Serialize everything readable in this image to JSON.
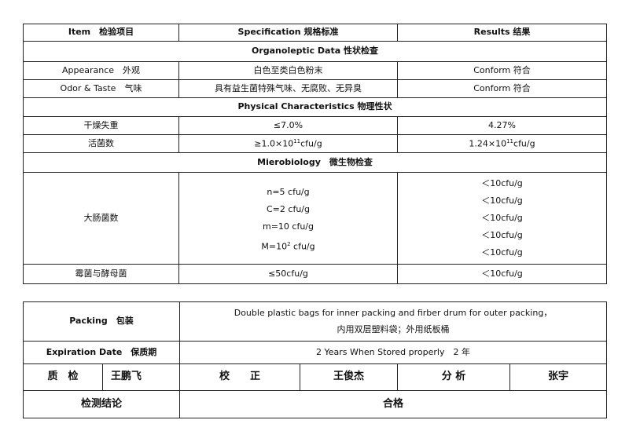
{
  "header": {
    "item": "Item　检验项目",
    "specification": "Specification 规格标准",
    "results": "Results 结果"
  },
  "sections": {
    "organoleptic": "Organoleptic Data 性状检查",
    "physical": "Physical Characteristics 物理性状",
    "microbiology": "Mierobiology　微生物检查"
  },
  "rows": {
    "appearance": {
      "item": "Appearance　外观",
      "spec": "白色至类白色粉末",
      "result": "Conform 符合"
    },
    "odor": {
      "item": "Odor & Taste　气味",
      "spec": "具有益生菌特殊气味、无腐败、无异臭",
      "result": "Conform 符合"
    },
    "drying_loss": {
      "item": "干燥失重",
      "spec": "≤7.0%",
      "result": "4.27%"
    },
    "viable_count": {
      "item": "活菌数",
      "spec_prefix": "≥1.0×10",
      "spec_exp": "11",
      "spec_suffix": "cfu/g",
      "result_prefix": "1.24×10",
      "result_exp": "11",
      "result_suffix": "cfu/g"
    },
    "coliform": {
      "item": "大肠菌数",
      "spec": [
        "n=5 cfu/g",
        "C=2 cfu/g",
        "m=10 cfu/g"
      ],
      "spec_last_prefix": "M=10",
      "spec_last_exp": "2",
      "spec_last_suffix": " cfu/g",
      "results": [
        "＜10cfu/g",
        "＜10cfu/g",
        "＜10cfu/g",
        "＜10cfu/g",
        "＜10cfu/g"
      ]
    },
    "mold_yeast": {
      "item": "霉菌与酵母菌",
      "spec": "≤50cfu/g",
      "result": "＜10cfu/g"
    }
  },
  "footer": {
    "packing_label": "Packing　包装",
    "packing_en": "Double plastic bags for inner packing and firber drum for outer packing，",
    "packing_cn": "内用双层塑料袋；外用纸板桶",
    "expiration_label": "Expiration Date　保质期",
    "expiration_value": "2 Years When Stored properly　2 年",
    "qc_label": "质　检",
    "qc_name": "王鹏飞",
    "check_label": "校　　正",
    "check_name": "王俊杰",
    "analysis_label": "分 析",
    "analysis_name": "张宇",
    "conclusion_label": "检测结论",
    "conclusion_value": "合格"
  }
}
